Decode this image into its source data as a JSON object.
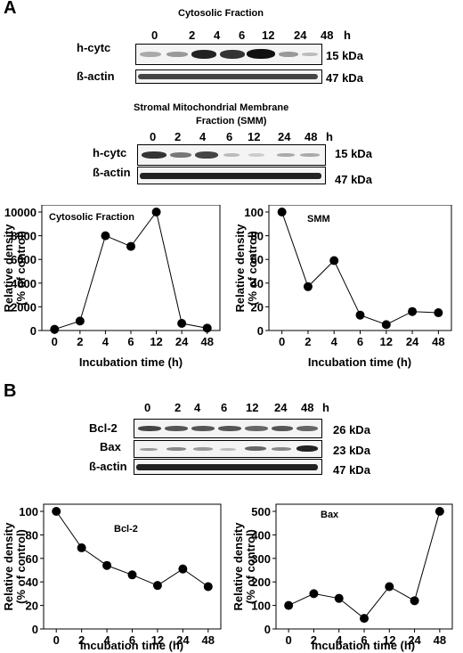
{
  "panelA": {
    "letter": "A",
    "cyto_blot": {
      "title": "Cytosolic Fraction",
      "lanes": [
        "0",
        "2",
        "4",
        "6",
        "12",
        "24",
        "48"
      ],
      "unit": "h",
      "rows": [
        {
          "label": "h-cytc",
          "kda": "15 kDa"
        },
        {
          "label": "ß-actin",
          "kda": "47 kDa"
        }
      ]
    },
    "smm_blot": {
      "title_line1": "Stromal Mitochondrial Membrane",
      "title_line2": "Fraction (SMM)",
      "lanes": [
        "0",
        "2",
        "4",
        "6",
        "12",
        "24",
        "48"
      ],
      "unit": "h",
      "rows": [
        {
          "label": "h-cytc",
          "kda": "15 kDa"
        },
        {
          "label": "ß-actin",
          "kda": "47 kDa"
        }
      ]
    }
  },
  "panelB": {
    "letter": "B",
    "blot": {
      "lanes": [
        "0",
        "2",
        "4",
        "6",
        "12",
        "24",
        "48"
      ],
      "unit": "h",
      "rows": [
        {
          "label": "Bcl-2",
          "kda": "26 kDa"
        },
        {
          "label": "Bax",
          "kda": "23 kDa"
        },
        {
          "label": "ß-actin",
          "kda": "47 kDa"
        }
      ]
    }
  },
  "chart_data": [
    {
      "type": "line",
      "title": "Cytosolic Fraction",
      "xlabel": "Incubation time (h)",
      "ylabel_line1": "Relative density",
      "ylabel_line2": "(% of control)",
      "categories": [
        "0",
        "2",
        "4",
        "6",
        "12",
        "24",
        "48"
      ],
      "values": [
        100,
        800,
        8000,
        7100,
        10000,
        600,
        200
      ],
      "yticks": [
        "0",
        "2000",
        "4000",
        "6000",
        "8000",
        "10000"
      ],
      "ylim": [
        0,
        10000
      ]
    },
    {
      "type": "line",
      "title": "SMM",
      "xlabel": "Incubation time (h)",
      "ylabel_line1": "Relative density",
      "ylabel_line2": "(% of control)",
      "categories": [
        "0",
        "2",
        "4",
        "6",
        "12",
        "24",
        "48"
      ],
      "values": [
        100,
        37,
        59,
        13,
        5,
        16,
        15
      ],
      "yticks": [
        "0",
        "20",
        "40",
        "60",
        "80",
        "100"
      ],
      "ylim": [
        0,
        100
      ]
    },
    {
      "type": "line",
      "title": "Bcl-2",
      "xlabel": "Incubation time (h)",
      "ylabel_line1": "Relative density",
      "ylabel_line2": "(% of control)",
      "categories": [
        "0",
        "2",
        "4",
        "6",
        "12",
        "24",
        "48"
      ],
      "values": [
        100,
        69,
        54,
        46,
        37,
        51,
        36
      ],
      "yticks": [
        "0",
        "20",
        "40",
        "60",
        "80",
        "100"
      ],
      "ylim": [
        0,
        100
      ]
    },
    {
      "type": "line",
      "title": "Bax",
      "xlabel": "Incubation time (h)",
      "ylabel_line1": "Relative density",
      "ylabel_line2": "(% of control)",
      "categories": [
        "0",
        "2",
        "4",
        "6",
        "12",
        "24",
        "48"
      ],
      "values": [
        100,
        150,
        130,
        45,
        180,
        120,
        500
      ],
      "yticks": [
        "0",
        "100",
        "200",
        "300",
        "400",
        "500"
      ],
      "ylim": [
        0,
        500
      ]
    }
  ]
}
